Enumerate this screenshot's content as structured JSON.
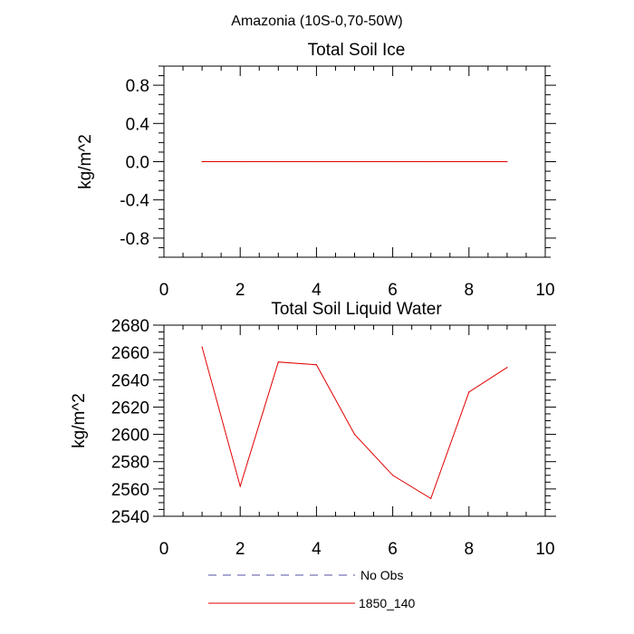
{
  "figure": {
    "title": "Amazonia (10S-0,70-50W)"
  },
  "chart_data": [
    {
      "type": "line",
      "title": "Total Soil Ice",
      "xlabel": "",
      "ylabel": "kg/m^2",
      "xlim": [
        0,
        10
      ],
      "ylim": [
        -1,
        1
      ],
      "xticks": [
        0,
        2,
        4,
        6,
        8,
        10
      ],
      "yticks": [
        -0.8,
        -0.4,
        0.0,
        0.4,
        0.8
      ],
      "ytick_labels": [
        "-0.8",
        "-0.4",
        "0.0",
        "0.4",
        "0.8"
      ],
      "series": [
        {
          "name": "1850_140",
          "color": "#e00000",
          "x": [
            1,
            2,
            3,
            4,
            5,
            6,
            7,
            8,
            9
          ],
          "y": [
            0,
            0,
            0,
            0,
            0,
            0,
            0,
            0,
            0
          ]
        }
      ]
    },
    {
      "type": "line",
      "title": "Total Soil Liquid Water",
      "xlabel": "",
      "ylabel": "kg/m^2",
      "xlim": [
        0,
        10
      ],
      "ylim": [
        2540,
        2680
      ],
      "xticks": [
        0,
        2,
        4,
        6,
        8,
        10
      ],
      "yticks": [
        2540,
        2560,
        2580,
        2600,
        2620,
        2640,
        2660,
        2680
      ],
      "ytick_labels": [
        "2540",
        "2560",
        "2580",
        "2600",
        "2620",
        "2640",
        "2660",
        "2680"
      ],
      "series": [
        {
          "name": "1850_140",
          "color": "#e00000",
          "x": [
            1,
            2,
            3,
            4,
            5,
            6,
            7,
            8,
            9
          ],
          "y": [
            2664,
            2562,
            2653,
            2651,
            2600,
            2570,
            2553,
            2631,
            2649
          ]
        }
      ]
    }
  ],
  "legend": [
    {
      "label": "No Obs",
      "color": "#5050a0",
      "style": "dashed"
    },
    {
      "label": "1850_140",
      "color": "#e00000",
      "style": "solid"
    }
  ]
}
